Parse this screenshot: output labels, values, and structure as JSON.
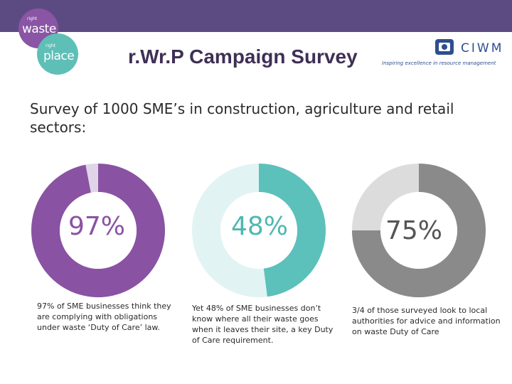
{
  "header": {
    "title": "r.Wr.P Campaign Survey",
    "logo_waste": {
      "small": "right",
      "word": "waste"
    },
    "logo_place": {
      "small": "right",
      "word": "place"
    },
    "ciwm": {
      "name": "CIWM",
      "tagline": "Inspiring excellence in resource management"
    }
  },
  "intro": "Survey of 1000 SME’s in construction, agriculture and retail sectors:",
  "stats": [
    {
      "value": 97,
      "label": "97%",
      "caption": "97% of SME businesses think they are complying with obligations under waste ‘Duty of Care’ law.",
      "color": "#8a52a3",
      "remainder_color": "#e0d4e8",
      "text_color": "#8a52a3"
    },
    {
      "value": 48,
      "label": "48%",
      "caption": "Yet 48% of SME businesses don’t know where all their waste goes when it leaves their site, a key Duty of Care requirement.",
      "color": "#5cc0bb",
      "remainder_color": "#e2f3f3",
      "text_color": "#4fb7b1"
    },
    {
      "value": 75,
      "label": "75%",
      "caption": "3/4 of those surveyed look to local authorities for advice and information on waste Duty of Care",
      "color": "#8a8a8a",
      "remainder_color": "#dcdcdc",
      "text_color": "#555555"
    }
  ]
}
